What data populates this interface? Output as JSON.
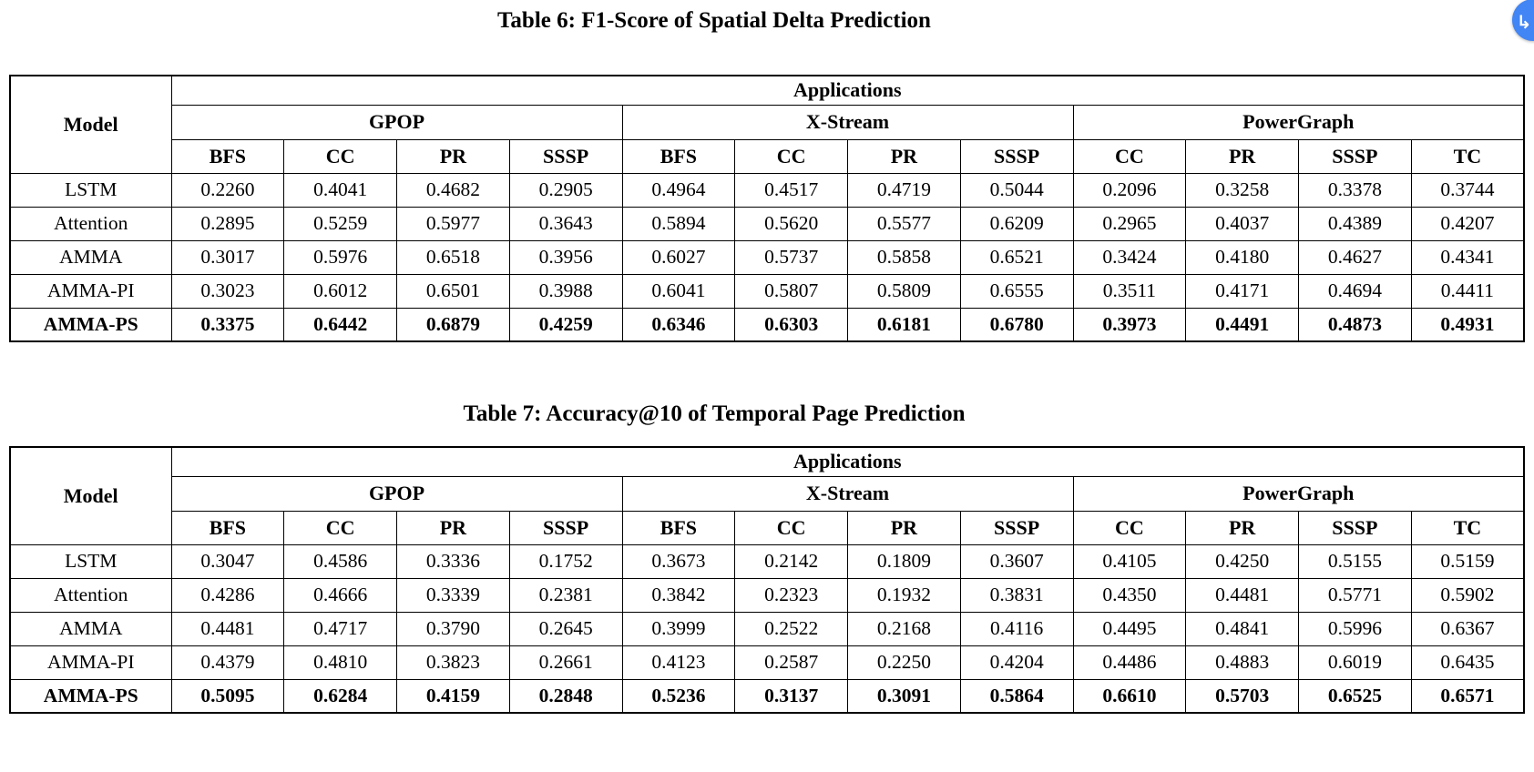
{
  "floating_button": {
    "glyph": "↳",
    "color": "#4285f4"
  },
  "tables": [
    {
      "caption": "Table 6: F1-Score of Spatial Delta Prediction",
      "model_header": "Model",
      "applications_header": "Applications",
      "groups": [
        {
          "label": "GPOP",
          "columns": [
            "BFS",
            "CC",
            "PR",
            "SSSP"
          ]
        },
        {
          "label": "X-Stream",
          "columns": [
            "BFS",
            "CC",
            "PR",
            "SSSP"
          ]
        },
        {
          "label": "PowerGraph",
          "columns": [
            "CC",
            "PR",
            "SSSP",
            "TC"
          ]
        }
      ],
      "rows": [
        {
          "model": "LSTM",
          "bold": false,
          "values": [
            "0.2260",
            "0.4041",
            "0.4682",
            "0.2905",
            "0.4964",
            "0.4517",
            "0.4719",
            "0.5044",
            "0.2096",
            "0.3258",
            "0.3378",
            "0.3744"
          ]
        },
        {
          "model": "Attention",
          "bold": false,
          "values": [
            "0.2895",
            "0.5259",
            "0.5977",
            "0.3643",
            "0.5894",
            "0.5620",
            "0.5577",
            "0.6209",
            "0.2965",
            "0.4037",
            "0.4389",
            "0.4207"
          ]
        },
        {
          "model": "AMMA",
          "bold": false,
          "values": [
            "0.3017",
            "0.5976",
            "0.6518",
            "0.3956",
            "0.6027",
            "0.5737",
            "0.5858",
            "0.6521",
            "0.3424",
            "0.4180",
            "0.4627",
            "0.4341"
          ]
        },
        {
          "model": "AMMA-PI",
          "bold": false,
          "values": [
            "0.3023",
            "0.6012",
            "0.6501",
            "0.3988",
            "0.6041",
            "0.5807",
            "0.5809",
            "0.6555",
            "0.3511",
            "0.4171",
            "0.4694",
            "0.4411"
          ]
        },
        {
          "model": "AMMA-PS",
          "bold": true,
          "values": [
            "0.3375",
            "0.6442",
            "0.6879",
            "0.4259",
            "0.6346",
            "0.6303",
            "0.6181",
            "0.6780",
            "0.3973",
            "0.4491",
            "0.4873",
            "0.4931"
          ]
        }
      ]
    },
    {
      "caption": "Table 7: Accuracy@10 of Temporal Page Prediction",
      "model_header": "Model",
      "applications_header": "Applications",
      "groups": [
        {
          "label": "GPOP",
          "columns": [
            "BFS",
            "CC",
            "PR",
            "SSSP"
          ]
        },
        {
          "label": "X-Stream",
          "columns": [
            "BFS",
            "CC",
            "PR",
            "SSSP"
          ]
        },
        {
          "label": "PowerGraph",
          "columns": [
            "CC",
            "PR",
            "SSSP",
            "TC"
          ]
        }
      ],
      "rows": [
        {
          "model": "LSTM",
          "bold": false,
          "values": [
            "0.3047",
            "0.4586",
            "0.3336",
            "0.1752",
            "0.3673",
            "0.2142",
            "0.1809",
            "0.3607",
            "0.4105",
            "0.4250",
            "0.5155",
            "0.5159"
          ]
        },
        {
          "model": "Attention",
          "bold": false,
          "values": [
            "0.4286",
            "0.4666",
            "0.3339",
            "0.2381",
            "0.3842",
            "0.2323",
            "0.1932",
            "0.3831",
            "0.4350",
            "0.4481",
            "0.5771",
            "0.5902"
          ]
        },
        {
          "model": "AMMA",
          "bold": false,
          "values": [
            "0.4481",
            "0.4717",
            "0.3790",
            "0.2645",
            "0.3999",
            "0.2522",
            "0.2168",
            "0.4116",
            "0.4495",
            "0.4841",
            "0.5996",
            "0.6367"
          ]
        },
        {
          "model": "AMMA-PI",
          "bold": false,
          "values": [
            "0.4379",
            "0.4810",
            "0.3823",
            "0.2661",
            "0.4123",
            "0.2587",
            "0.2250",
            "0.4204",
            "0.4486",
            "0.4883",
            "0.6019",
            "0.6435"
          ]
        },
        {
          "model": "AMMA-PS",
          "bold": true,
          "values": [
            "0.5095",
            "0.6284",
            "0.4159",
            "0.2848",
            "0.5236",
            "0.3137",
            "0.3091",
            "0.5864",
            "0.6610",
            "0.5703",
            "0.6525",
            "0.6571"
          ]
        }
      ]
    }
  ]
}
